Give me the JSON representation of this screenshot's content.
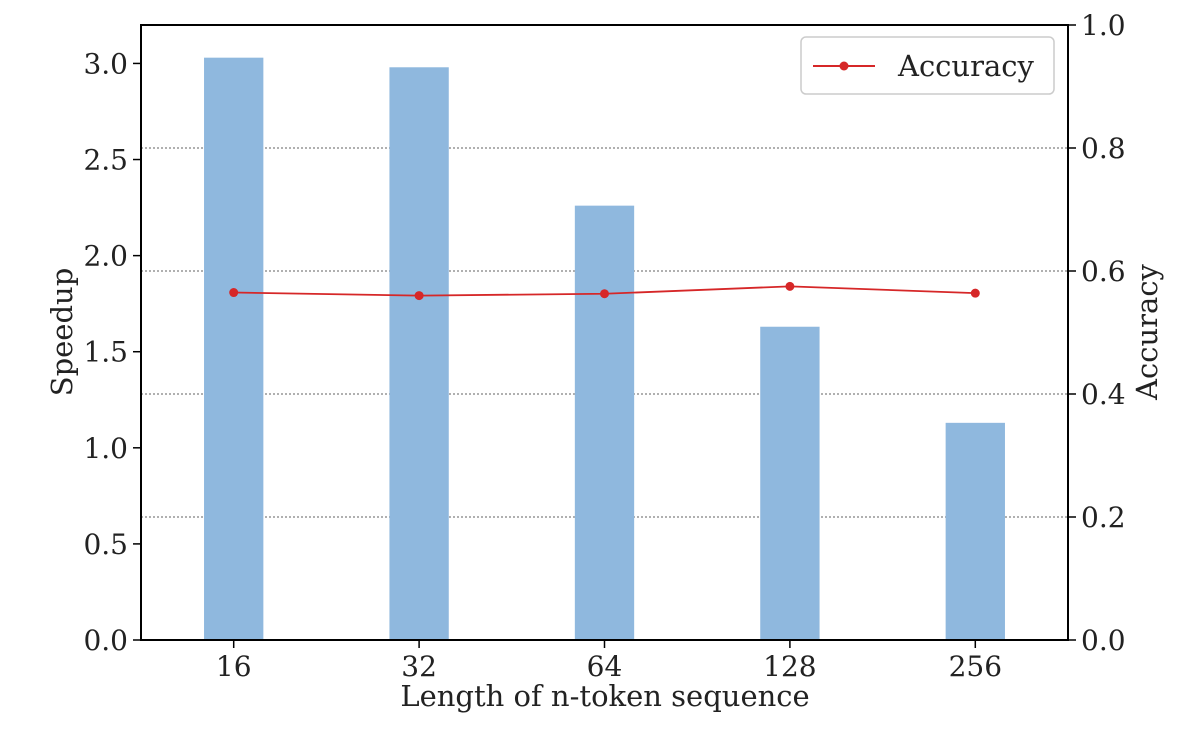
{
  "chart_data": {
    "type": "bar",
    "categories": [
      "16",
      "32",
      "64",
      "128",
      "256"
    ],
    "series": [
      {
        "type": "bar",
        "axis": "left",
        "values": [
          3.03,
          2.98,
          2.26,
          1.63,
          1.13
        ],
        "color": "#8fb8de"
      },
      {
        "type": "line",
        "axis": "right",
        "name": "Accuracy",
        "values": [
          0.565,
          0.56,
          0.563,
          0.575,
          0.564
        ],
        "color": "#d62728"
      }
    ],
    "xlabel": "Length of n-token sequence",
    "ylabel": "Speedup",
    "ylabel_right": "Accuracy",
    "ylim": [
      0,
      3.2
    ],
    "ylim_right": [
      0,
      1.0
    ],
    "yticks": [
      "0.0",
      "0.5",
      "1.0",
      "1.5",
      "2.0",
      "2.5",
      "3.0"
    ],
    "yticks_right": [
      "0.0",
      "0.2",
      "0.4",
      "0.6",
      "0.8",
      "1.0"
    ],
    "grid": "horizontal dotted at right-axis ticks",
    "legend": {
      "position": "top-right",
      "entries": [
        "Accuracy"
      ]
    }
  }
}
